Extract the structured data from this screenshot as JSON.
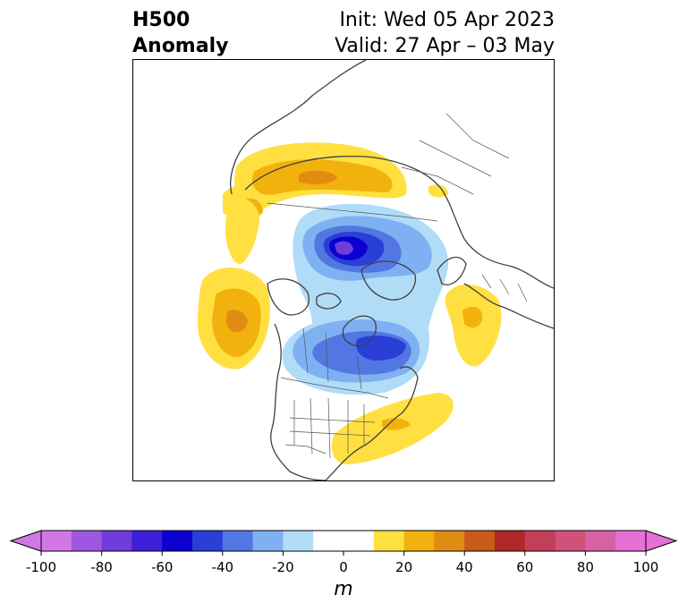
{
  "title": {
    "left_line1": "H500",
    "left_line2": "Anomaly",
    "right_line1": "Init: Wed 05 Apr 2023",
    "right_line2": "Valid: 27 Apr – 03 May"
  },
  "colorbar": {
    "units": "m",
    "tick_labels": [
      "-100",
      "-80",
      "-60",
      "-40",
      "-20",
      "0",
      "20",
      "40",
      "60",
      "80",
      "100"
    ],
    "tick_values": [
      -100,
      -80,
      -60,
      -40,
      -20,
      0,
      20,
      40,
      60,
      80,
      100
    ],
    "min": -100,
    "max": 100,
    "step": 10,
    "extend": "both",
    "colors": [
      "#d278e6",
      "#a057e0",
      "#6f3ddc",
      "#3e1ed8",
      "#0c00d0",
      "#2a3ed8",
      "#5277e2",
      "#7fb1f2",
      "#b1dcf8",
      "#ffffff",
      "#ffffff",
      "#ffe040",
      "#f2b20d",
      "#e08c12",
      "#c85a1a",
      "#b02828",
      "#c23f5a",
      "#d0527a",
      "#d860a4",
      "#e570d6"
    ]
  },
  "map": {
    "projection": "north-polar-stereographic",
    "colors": {
      "coast": "#404040",
      "yellow": "#ffe040",
      "gold": "#f2b20d",
      "orange": "#e08c12",
      "lightblue": "#b1dcf8",
      "skyblue": "#7fb1f2",
      "medblue": "#5277e2",
      "royalblue": "#2a3ed8",
      "deepblue": "#0c00d0",
      "violet": "#6f3ddc"
    }
  }
}
